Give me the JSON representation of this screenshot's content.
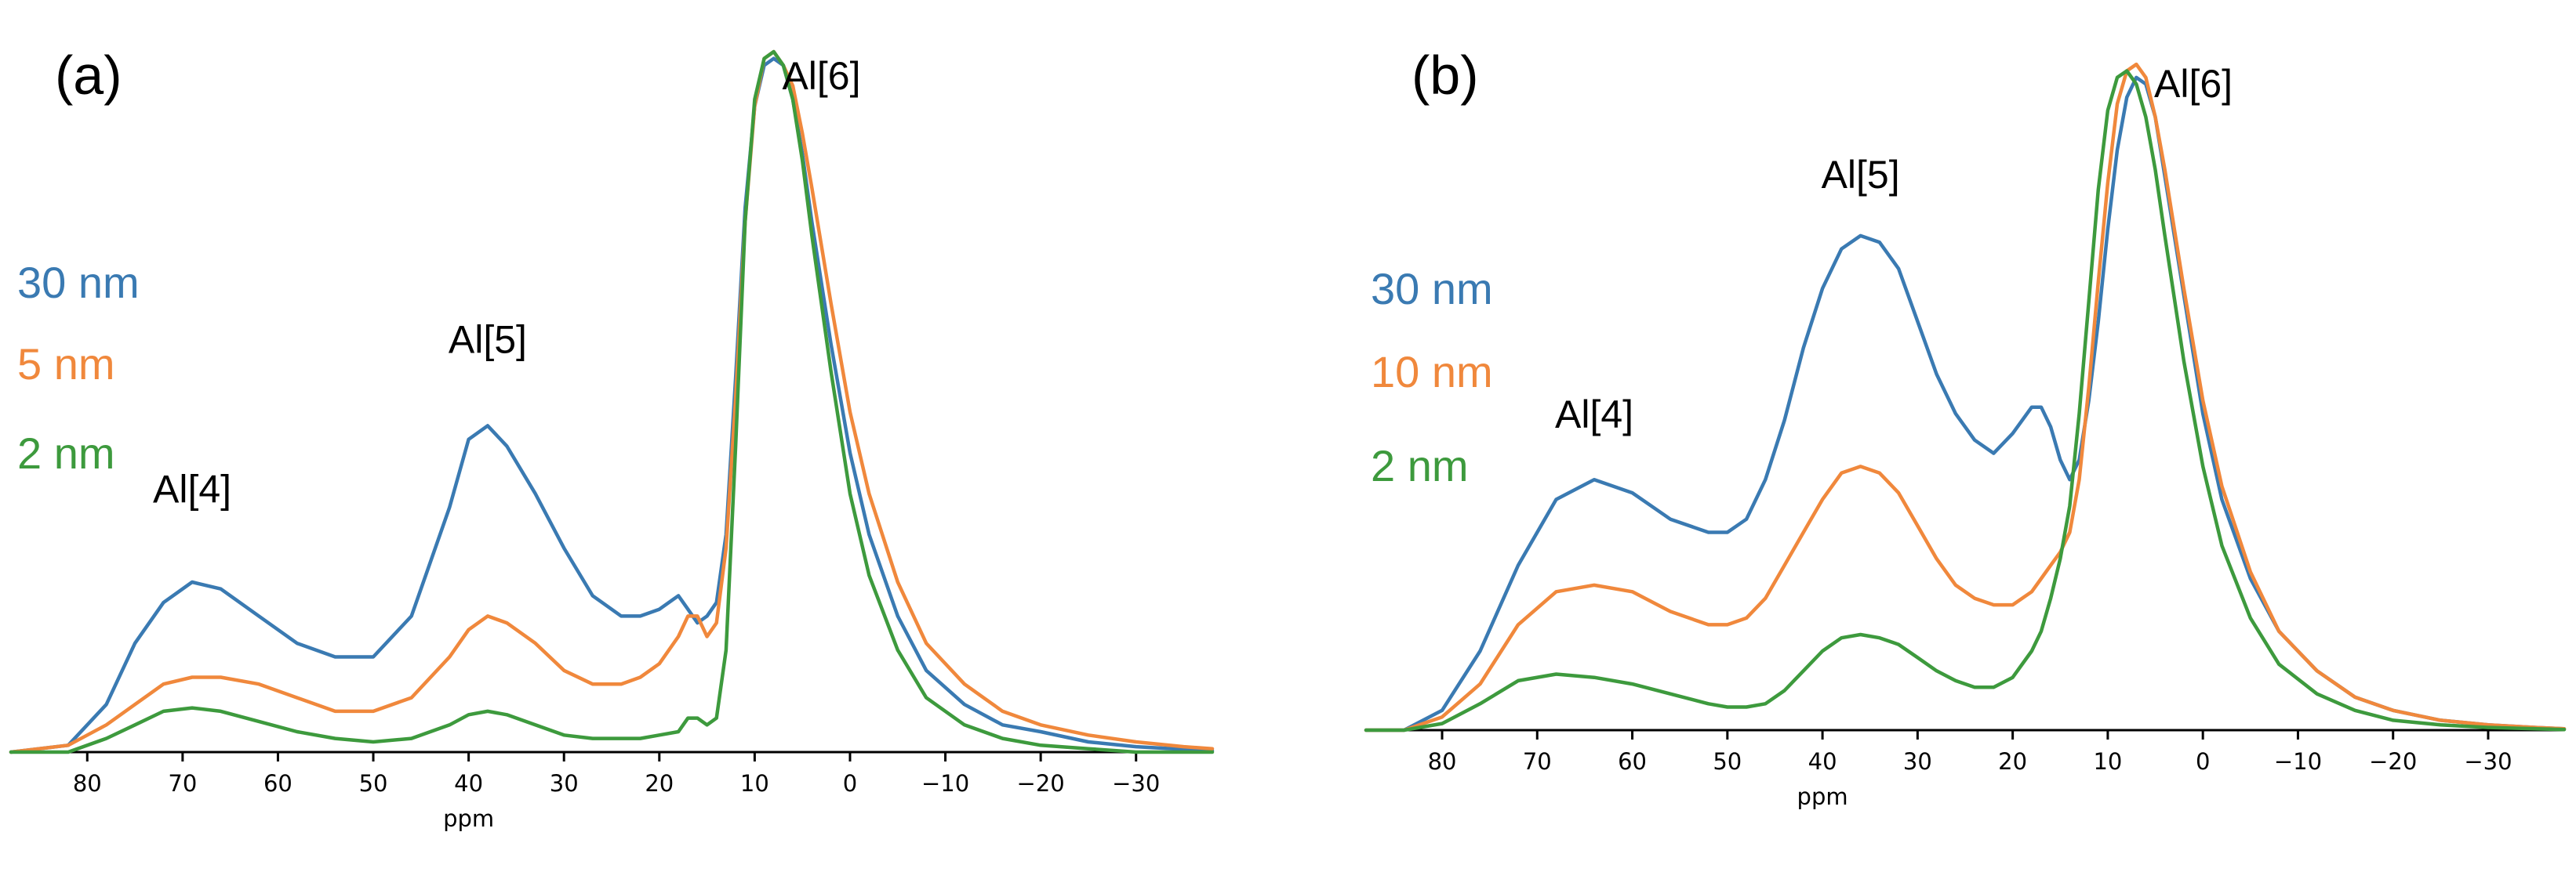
{
  "chart_data": [
    {
      "panel": "(a)",
      "type": "line",
      "xlabel": "ppm",
      "ylabel": "",
      "xlim": [
        88,
        -38
      ],
      "xticks": [
        80,
        70,
        60,
        50,
        40,
        30,
        20,
        10,
        0,
        -10,
        -20,
        -30
      ],
      "xtick_labels": [
        "80",
        "70",
        "60",
        "50",
        "40",
        "30",
        "20",
        "10",
        "0",
        "−10",
        "−20",
        "−30"
      ],
      "ylim": [
        0,
        1.06
      ],
      "grid": false,
      "legend": [
        "30 nm",
        "5 nm",
        "2 nm"
      ],
      "annotations": [
        {
          "text": "Al[4]",
          "x": 69,
          "y": 0.315
        },
        {
          "text": "Al[5]",
          "x": 38,
          "y": 0.535
        },
        {
          "text": "Al[6]",
          "x": 3,
          "y": 0.975
        }
      ],
      "series": [
        {
          "name": "30 nm",
          "color": "#3a7ab2",
          "x": [
            88,
            82,
            78,
            75,
            72,
            69,
            66,
            62,
            58,
            54,
            50,
            46,
            42,
            40,
            38,
            36,
            33,
            30,
            27,
            24,
            22,
            20,
            18,
            17,
            16,
            15,
            14,
            13,
            12,
            11,
            10,
            9,
            8,
            7,
            6,
            5,
            4,
            2,
            0,
            -2,
            -5,
            -8,
            -12,
            -16,
            -20,
            -25,
            -30,
            -35,
            -38
          ],
          "y": [
            0.0,
            0.01,
            0.07,
            0.16,
            0.22,
            0.25,
            0.24,
            0.2,
            0.16,
            0.14,
            0.14,
            0.2,
            0.36,
            0.46,
            0.48,
            0.45,
            0.38,
            0.3,
            0.23,
            0.2,
            0.2,
            0.21,
            0.23,
            0.21,
            0.19,
            0.2,
            0.22,
            0.32,
            0.55,
            0.8,
            0.95,
            1.01,
            1.02,
            1.01,
            0.96,
            0.88,
            0.78,
            0.6,
            0.44,
            0.32,
            0.2,
            0.12,
            0.07,
            0.04,
            0.03,
            0.015,
            0.008,
            0.004,
            0.002
          ]
        },
        {
          "name": "5 nm",
          "color": "#f0883c",
          "x": [
            88,
            82,
            78,
            75,
            72,
            69,
            66,
            62,
            58,
            54,
            50,
            46,
            42,
            40,
            38,
            36,
            33,
            30,
            27,
            24,
            22,
            20,
            18,
            17,
            16,
            15,
            14,
            13,
            12,
            11,
            10,
            9,
            8,
            7,
            6,
            5,
            4,
            2,
            0,
            -2,
            -5,
            -8,
            -12,
            -16,
            -20,
            -25,
            -30,
            -35,
            -38
          ],
          "y": [
            0.0,
            0.01,
            0.04,
            0.07,
            0.1,
            0.11,
            0.11,
            0.1,
            0.08,
            0.06,
            0.06,
            0.08,
            0.14,
            0.18,
            0.2,
            0.19,
            0.16,
            0.12,
            0.1,
            0.1,
            0.11,
            0.13,
            0.17,
            0.2,
            0.2,
            0.17,
            0.19,
            0.3,
            0.52,
            0.78,
            0.95,
            1.02,
            1.03,
            1.01,
            0.98,
            0.91,
            0.83,
            0.66,
            0.5,
            0.38,
            0.25,
            0.16,
            0.1,
            0.06,
            0.04,
            0.025,
            0.015,
            0.008,
            0.005
          ]
        },
        {
          "name": "2 nm",
          "color": "#3d9a3d",
          "x": [
            88,
            82,
            78,
            75,
            72,
            69,
            66,
            62,
            58,
            54,
            50,
            46,
            42,
            40,
            38,
            36,
            33,
            30,
            27,
            24,
            22,
            20,
            18,
            17,
            16,
            15,
            14,
            13,
            12,
            11,
            10,
            9,
            8,
            7,
            6,
            5,
            4,
            2,
            0,
            -2,
            -5,
            -8,
            -12,
            -16,
            -20,
            -25,
            -30,
            -35,
            -38
          ],
          "y": [
            0.0,
            0.0,
            0.02,
            0.04,
            0.06,
            0.065,
            0.06,
            0.045,
            0.03,
            0.02,
            0.015,
            0.02,
            0.04,
            0.055,
            0.06,
            0.055,
            0.04,
            0.025,
            0.02,
            0.02,
            0.02,
            0.025,
            0.03,
            0.05,
            0.05,
            0.04,
            0.05,
            0.15,
            0.45,
            0.78,
            0.96,
            1.02,
            1.03,
            1.01,
            0.96,
            0.87,
            0.76,
            0.56,
            0.38,
            0.26,
            0.15,
            0.08,
            0.04,
            0.02,
            0.01,
            0.005,
            0.0,
            0.0,
            0.0
          ]
        }
      ]
    },
    {
      "panel": "(b)",
      "type": "line",
      "xlabel": "ppm",
      "ylabel": "",
      "xlim": [
        88,
        -38
      ],
      "xticks": [
        80,
        70,
        60,
        50,
        40,
        30,
        20,
        10,
        0,
        -10,
        -20,
        -30
      ],
      "xtick_labels": [
        "80",
        "70",
        "60",
        "50",
        "40",
        "30",
        "20",
        "10",
        "0",
        "−10",
        "−20",
        "−30"
      ],
      "ylim": [
        0,
        1.06
      ],
      "grid": false,
      "legend": [
        "30 nm",
        "10 nm",
        "2 nm"
      ],
      "annotations": [
        {
          "text": "Al[4]",
          "x": 64,
          "y": 0.405
        },
        {
          "text": "Al[5]",
          "x": 36,
          "y": 0.775
        },
        {
          "text": "Al[6]",
          "x": 1,
          "y": 0.96
        }
      ],
      "series": [
        {
          "name": "30 nm",
          "color": "#3a7ab2",
          "x": [
            88,
            84,
            80,
            76,
            72,
            68,
            64,
            60,
            56,
            52,
            50,
            48,
            46,
            44,
            42,
            40,
            38,
            36,
            34,
            32,
            30,
            28,
            26,
            24,
            22,
            20,
            18,
            17,
            16,
            15,
            14,
            13,
            12,
            11,
            10,
            9,
            8,
            7,
            6,
            5,
            4,
            2,
            0,
            -2,
            -5,
            -8,
            -12,
            -16,
            -20,
            -25,
            -30,
            -35,
            -38
          ],
          "y": [
            0.0,
            0.0,
            0.03,
            0.12,
            0.25,
            0.35,
            0.38,
            0.36,
            0.32,
            0.3,
            0.3,
            0.32,
            0.38,
            0.47,
            0.58,
            0.67,
            0.73,
            0.75,
            0.74,
            0.7,
            0.62,
            0.54,
            0.48,
            0.44,
            0.42,
            0.45,
            0.49,
            0.49,
            0.46,
            0.41,
            0.38,
            0.41,
            0.5,
            0.62,
            0.76,
            0.88,
            0.96,
            0.99,
            0.98,
            0.93,
            0.84,
            0.66,
            0.48,
            0.35,
            0.23,
            0.15,
            0.09,
            0.05,
            0.03,
            0.015,
            0.008,
            0.004,
            0.002
          ]
        },
        {
          "name": "10 nm",
          "color": "#f0883c",
          "x": [
            88,
            84,
            80,
            76,
            72,
            68,
            64,
            60,
            56,
            52,
            50,
            48,
            46,
            44,
            42,
            40,
            38,
            36,
            34,
            32,
            30,
            28,
            26,
            24,
            22,
            20,
            18,
            17,
            16,
            15,
            14,
            13,
            12,
            11,
            10,
            9,
            8,
            7,
            6,
            5,
            4,
            2,
            0,
            -2,
            -5,
            -8,
            -12,
            -16,
            -20,
            -25,
            -30,
            -35,
            -38
          ],
          "y": [
            0.0,
            0.0,
            0.02,
            0.07,
            0.16,
            0.21,
            0.22,
            0.21,
            0.18,
            0.16,
            0.16,
            0.17,
            0.2,
            0.25,
            0.3,
            0.35,
            0.39,
            0.4,
            0.39,
            0.36,
            0.31,
            0.26,
            0.22,
            0.2,
            0.19,
            0.19,
            0.21,
            0.23,
            0.25,
            0.27,
            0.3,
            0.38,
            0.52,
            0.68,
            0.83,
            0.95,
            1.0,
            1.01,
            0.99,
            0.93,
            0.85,
            0.67,
            0.5,
            0.37,
            0.24,
            0.15,
            0.09,
            0.05,
            0.03,
            0.015,
            0.008,
            0.004,
            0.002
          ]
        },
        {
          "name": "2 nm",
          "color": "#3d9a3d",
          "x": [
            88,
            84,
            80,
            76,
            72,
            68,
            64,
            60,
            56,
            52,
            50,
            48,
            46,
            44,
            42,
            40,
            38,
            36,
            34,
            32,
            30,
            28,
            26,
            24,
            22,
            20,
            18,
            17,
            16,
            15,
            14,
            13,
            12,
            11,
            10,
            9,
            8,
            7,
            6,
            5,
            4,
            2,
            0,
            -2,
            -5,
            -8,
            -12,
            -16,
            -20,
            -25,
            -30,
            -35,
            -38
          ],
          "y": [
            0.0,
            0.0,
            0.01,
            0.04,
            0.075,
            0.085,
            0.08,
            0.07,
            0.055,
            0.04,
            0.035,
            0.035,
            0.04,
            0.06,
            0.09,
            0.12,
            0.14,
            0.145,
            0.14,
            0.13,
            0.11,
            0.09,
            0.075,
            0.065,
            0.065,
            0.08,
            0.12,
            0.15,
            0.2,
            0.26,
            0.34,
            0.48,
            0.65,
            0.82,
            0.94,
            0.99,
            1.0,
            0.98,
            0.93,
            0.85,
            0.75,
            0.56,
            0.4,
            0.28,
            0.17,
            0.1,
            0.055,
            0.03,
            0.015,
            0.008,
            0.004,
            0.002,
            0.001
          ]
        }
      ]
    }
  ]
}
